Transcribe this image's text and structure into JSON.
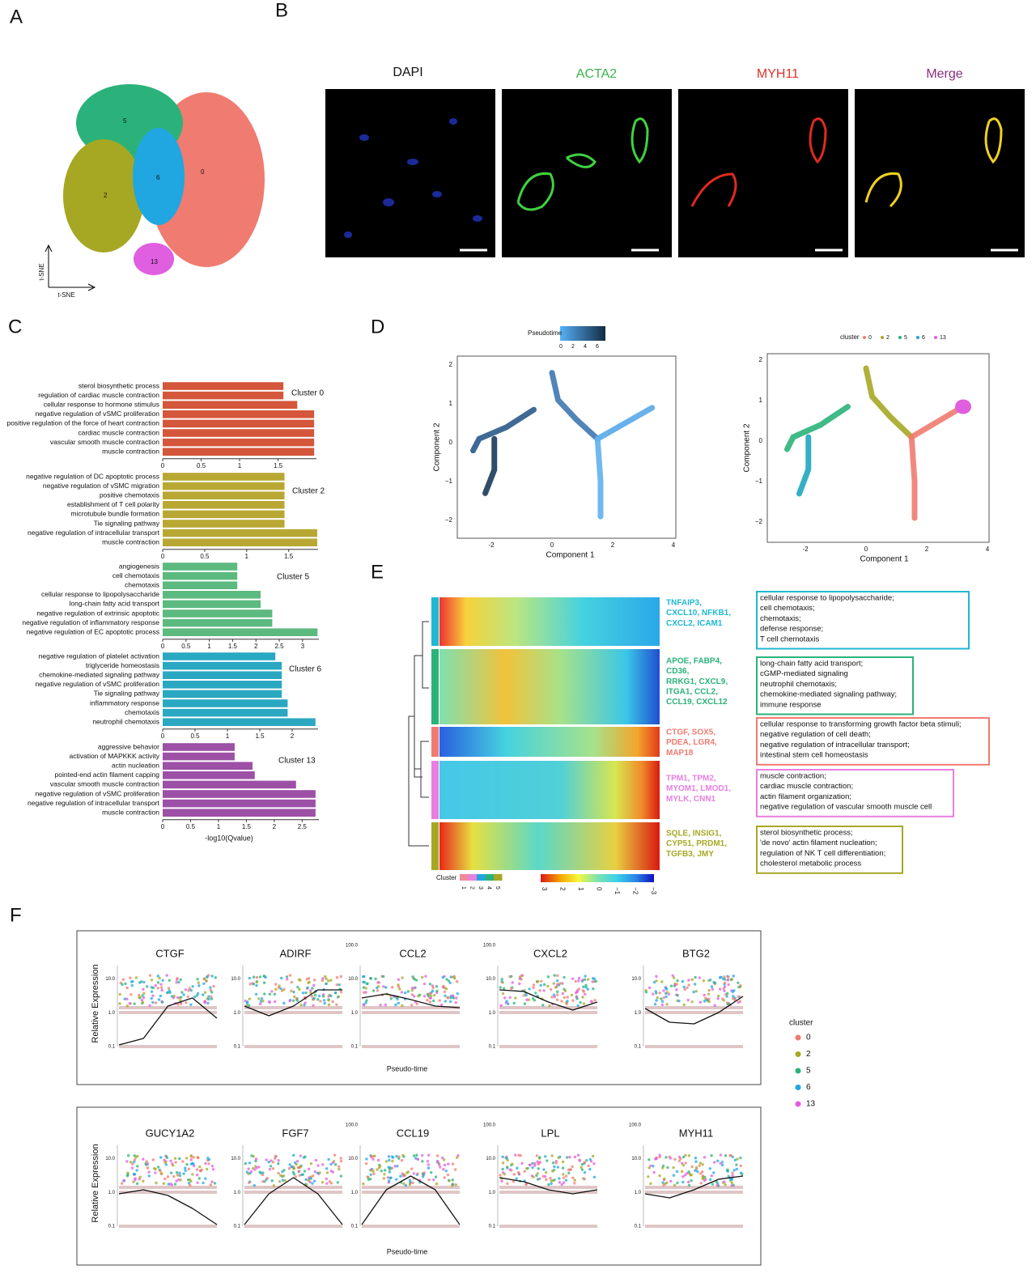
{
  "panel_labels": [
    "A",
    "B",
    "C",
    "D",
    "E",
    "F"
  ],
  "tsne": {
    "clusters": [
      "5",
      "0",
      "2",
      "6",
      "13"
    ],
    "x_label": "t-SNE",
    "y_label": "t-SNE"
  },
  "images": {
    "titles": [
      "DAPI",
      "ACTA2",
      "MYH11",
      "Merge"
    ]
  },
  "chart_data": [
    {
      "type": "bar",
      "title": "Cluster 0",
      "color": "#d4563b",
      "xlim": [
        0,
        2
      ],
      "xticks": [
        0,
        0.5,
        1,
        1.5
      ],
      "categories": [
        "sterol biosynthetic process",
        "regulation of cardiac muscle contraction",
        "cellular response to hormone stimulus",
        "negative regulation of vSMC proliferation",
        "positive regulation of the force of heart contraction",
        "cardiac muscle contraction",
        "vascular smooth muscle contraction",
        "muscle contraction"
      ],
      "values": [
        1.57,
        1.57,
        1.75,
        1.97,
        1.97,
        1.97,
        1.97,
        1.97
      ]
    },
    {
      "type": "bar",
      "title": "Cluster 2",
      "color": "#b8a833",
      "xlim": [
        0,
        1.85
      ],
      "xticks": [
        0,
        0.5,
        1,
        1.5
      ],
      "categories": [
        "negative regulation of  DC apoptotic process",
        "negative regulation of vSMC migration",
        "positive chemotaxis",
        "establishment of T cell polarity",
        "microtubule bundle formation",
        "Tie signaling pathway",
        "negative regulation of intracellular transport",
        "muscle contraction"
      ],
      "values": [
        1.45,
        1.45,
        1.45,
        1.45,
        1.45,
        1.45,
        1.84,
        1.84
      ]
    },
    {
      "type": "bar",
      "title": "Cluster 5",
      "color": "#5cb97f",
      "xlim": [
        0,
        3.35
      ],
      "xticks": [
        0,
        0.5,
        1,
        1.5,
        2,
        2.5,
        3
      ],
      "categories": [
        "angiogenesis",
        "cell chemotaxis",
        "chemotaxis",
        "cellular response to lipopolysaccharide",
        "long-chain fatty acid transport",
        "negative regulation of extrinsic apoptotic",
        "negative regulation of inflammatory response",
        "negative regulation of EC apoptotic process"
      ],
      "values": [
        1.6,
        1.6,
        1.6,
        2.1,
        2.1,
        2.35,
        2.35,
        3.32
      ]
    },
    {
      "type": "bar",
      "title": "Cluster 6",
      "color": "#2aa8c2",
      "xlim": [
        0,
        2.4
      ],
      "xticks": [
        0,
        0.5,
        1,
        1.5,
        2
      ],
      "categories": [
        "negative regulation of platelet activation",
        "triglyceride homeostasis",
        "chemokine-mediated signaling pathway",
        "negative regulation of vSMC proliferation",
        "Tie signaling pathway",
        "inflammatory response",
        "chemotaxis",
        "neutrophil chemotaxis"
      ],
      "values": [
        1.74,
        1.84,
        1.84,
        1.84,
        1.84,
        1.93,
        1.93,
        2.36
      ]
    },
    {
      "type": "bar",
      "title": "Cluster 13",
      "color": "#9c50a6",
      "xlim": [
        0,
        2.8
      ],
      "xticks": [
        0,
        0.5,
        1,
        1.5,
        2,
        2.5
      ],
      "categories": [
        "aggressive behavior",
        "activation of MAPKKK activity",
        "actin nucleation",
        "pointed-end actin filament capping",
        "vascular smooth muscle contraction",
        "negative regulation of vSMC proliferation",
        "negative regulation of intracellular transport",
        "muscle contraction"
      ],
      "values": [
        1.29,
        1.29,
        1.61,
        1.65,
        2.39,
        2.74,
        2.74,
        2.74
      ]
    }
  ],
  "bar_x_label": "-log10(Qvalue)",
  "trajectory": {
    "legend_title": "Pseudotime",
    "legend_ticks": [
      "0",
      "2",
      "4",
      "6"
    ],
    "y_ticks": [
      "2",
      "1",
      "0",
      "−1",
      "−2"
    ],
    "x_ticks": [
      "-2",
      "0",
      "2",
      "4"
    ],
    "x_label": "Component 1",
    "y_label": "Component 2",
    "cluster_title": "cluster",
    "clusters": [
      "0",
      "2",
      "5",
      "6",
      "13"
    ]
  },
  "heatmap": {
    "genes": [
      [
        "TNFAIP3,",
        "CXCL10, NFKB1,",
        "CXCL2, ICAM1"
      ],
      [
        "APOE, FABP4,",
        "CD36,",
        "RRKG1, CXCL9,",
        "ITGA1, CCL2,",
        "CCL19, CXCL12"
      ],
      [
        "CTGF, SOX5,",
        "PDEA, LGR4,",
        "MAP18"
      ],
      [
        "TPM1, TPM2,",
        "MYOM1, LMOD1,",
        "MYLK, CNN1"
      ],
      [
        "SQLE, INSIG1,",
        "CYP51, PRDM1,",
        "TGFB3, JMY"
      ]
    ],
    "terms": [
      [
        "cellular response to lipopolysaccharide;",
        "cell chemotaxis;",
        "chemotaxis;",
        "defense response;",
        "T cell chemotaxis"
      ],
      [
        "long-chain fatty acid transport;",
        "cGMP-mediated signaling",
        "neutrophil chemotaxis;",
        "chemokine-mediated signaling pathway;",
        "immune response"
      ],
      [
        "cellular response to transforming growth factor beta stimuli;",
        "negative regulation of cell death;",
        "negative regulation of intracellular transport;",
        "intestinal stem cell homeostasis"
      ],
      [
        "muscle contraction;",
        "cardiac muscle contraction;",
        "actin filament organization;",
        "negative regulation of vascular smooth muscle cell"
      ],
      [
        "sterol biosynthetic process;",
        "'de novo' actin filament nucleation;",
        "regulation of NK T cell differentiation;",
        "cholesterol metabolic process"
      ]
    ],
    "cluster_title": "Cluster",
    "clusters": [
      "1",
      "2",
      "3",
      "4",
      "5"
    ],
    "scale": [
      "3",
      "2",
      "1",
      "0",
      "−1",
      "−2",
      "−3"
    ]
  },
  "expression": {
    "y_label": "Relative Expression",
    "x_label": "Pseudo-time",
    "legend_title": "cluster",
    "clusters": [
      "0",
      "2",
      "5",
      "6",
      "13"
    ],
    "panels": [
      {
        "title": "CTGF",
        "yticks": [
          "10.0",
          "1.0",
          "0.1"
        ]
      },
      {
        "title": "ADIRF",
        "yticks": [
          "10.0",
          "1.0",
          "0.1"
        ]
      },
      {
        "title": "CCL2",
        "yticks": [
          "100.0",
          "10.0",
          "1.0",
          "0.1"
        ]
      },
      {
        "title": "CXCL2",
        "yticks": [
          "100.0",
          "10.0",
          "1.0",
          "0.1"
        ]
      },
      {
        "title": "BTG2",
        "yticks": [
          "10.0",
          "1.0",
          "0.1"
        ]
      },
      {
        "title": "GUCY1A2",
        "yticks": [
          "10.0",
          "1.0",
          "0.1"
        ]
      },
      {
        "title": "FGF7",
        "yticks": [
          "10.0",
          "1.0",
          "0.1"
        ]
      },
      {
        "title": "CCL19",
        "yticks": [
          "100.0",
          "10.0",
          "1.0",
          "0.1"
        ]
      },
      {
        "title": "LPL",
        "yticks": [
          "100.0",
          "10.0",
          "1.0",
          "0.1"
        ]
      },
      {
        "title": "MYH11",
        "yticks": [
          "100.0",
          "10.0",
          "1.0",
          "0.1"
        ]
      }
    ]
  }
}
